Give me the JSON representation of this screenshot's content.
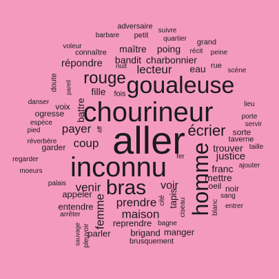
{
  "colors": {
    "background": "#f49ac1",
    "text": "#1a1a1a"
  },
  "words": [
    {
      "text": "aller",
      "orientation": "horizontal"
    },
    {
      "text": "chourineur",
      "orientation": "horizontal"
    },
    {
      "text": "inconnu",
      "orientation": "horizontal"
    },
    {
      "text": "goualeuse",
      "orientation": "horizontal"
    },
    {
      "text": "homme",
      "orientation": "vertical"
    },
    {
      "text": "bras",
      "orientation": "horizontal"
    },
    {
      "text": "rouge",
      "orientation": "horizontal"
    },
    {
      "text": "écrier",
      "orientation": "horizontal"
    },
    {
      "text": "payer",
      "orientation": "horizontal"
    },
    {
      "text": "coup",
      "orientation": "horizontal"
    },
    {
      "text": "venir",
      "orientation": "horizontal"
    },
    {
      "text": "maison",
      "orientation": "horizontal"
    },
    {
      "text": "prendre",
      "orientation": "horizontal"
    },
    {
      "text": "lecteur",
      "orientation": "horizontal"
    },
    {
      "text": "voir",
      "orientation": "horizontal"
    },
    {
      "text": "fille",
      "orientation": "horizontal"
    },
    {
      "text": "répondre",
      "orientation": "horizontal"
    },
    {
      "text": "bandit",
      "orientation": "horizontal"
    },
    {
      "text": "charbonnier",
      "orientation": "horizontal"
    },
    {
      "text": "maître",
      "orientation": "horizontal"
    },
    {
      "text": "poing",
      "orientation": "horizontal"
    },
    {
      "text": "eau",
      "orientation": "horizontal"
    },
    {
      "text": "justice",
      "orientation": "horizontal"
    },
    {
      "text": "trouver",
      "orientation": "horizontal"
    },
    {
      "text": "franc",
      "orientation": "horizontal"
    },
    {
      "text": "mettre",
      "orientation": "horizontal"
    },
    {
      "text": "femme",
      "orientation": "vertical"
    },
    {
      "text": "tapis",
      "orientation": "vertical"
    },
    {
      "text": "manger",
      "orientation": "horizontal"
    },
    {
      "text": "brigand",
      "orientation": "horizontal"
    },
    {
      "text": "parler",
      "orientation": "horizontal"
    },
    {
      "text": "reprendre",
      "orientation": "horizontal"
    },
    {
      "text": "appeler",
      "orientation": "horizontal"
    },
    {
      "text": "entendre",
      "orientation": "horizontal"
    },
    {
      "text": "battre",
      "orientation": "vertical"
    },
    {
      "text": "voix",
      "orientation": "horizontal"
    },
    {
      "text": "ogresse",
      "orientation": "horizontal"
    },
    {
      "text": "oeil",
      "orientation": "horizontal"
    },
    {
      "text": "noir",
      "orientation": "horizontal"
    },
    {
      "text": "sorte",
      "orientation": "horizontal"
    },
    {
      "text": "taverne",
      "orientation": "horizontal"
    },
    {
      "text": "garder",
      "orientation": "horizontal"
    },
    {
      "text": "rue",
      "orientation": "horizontal"
    },
    {
      "text": "quartier",
      "orientation": "horizontal"
    },
    {
      "text": "connaître",
      "orientation": "horizontal"
    },
    {
      "text": "petit",
      "orientation": "horizontal"
    },
    {
      "text": "adversaire",
      "orientation": "horizontal"
    },
    {
      "text": "barbare",
      "orientation": "horizontal"
    },
    {
      "text": "suivre",
      "orientation": "horizontal"
    },
    {
      "text": "grand",
      "orientation": "horizontal"
    },
    {
      "text": "voleur",
      "orientation": "horizontal"
    },
    {
      "text": "récit",
      "orientation": "horizontal"
    },
    {
      "text": "peine",
      "orientation": "horizontal"
    },
    {
      "text": "nuit",
      "orientation": "horizontal"
    },
    {
      "text": "scène",
      "orientation": "horizontal"
    },
    {
      "text": "doute",
      "orientation": "vertical"
    },
    {
      "text": "pareil",
      "orientation": "vertical"
    },
    {
      "text": "fois",
      "orientation": "horizontal"
    },
    {
      "text": "danser",
      "orientation": "horizontal"
    },
    {
      "text": "espèce",
      "orientation": "horizontal"
    },
    {
      "text": "pied",
      "orientation": "horizontal"
    },
    {
      "text": "aff",
      "orientation": "vertical"
    },
    {
      "text": "réverbère",
      "orientation": "horizontal"
    },
    {
      "text": "lieu",
      "orientation": "horizontal"
    },
    {
      "text": "porte",
      "orientation": "horizontal"
    },
    {
      "text": "servir",
      "orientation": "horizontal"
    },
    {
      "text": "taille",
      "orientation": "horizontal"
    },
    {
      "text": "ajouter",
      "orientation": "horizontal"
    },
    {
      "text": "regarder",
      "orientation": "horizontal"
    },
    {
      "text": "moeurs",
      "orientation": "horizontal"
    },
    {
      "text": "fer",
      "orientation": "horizontal"
    },
    {
      "text": "palais",
      "orientation": "horizontal"
    },
    {
      "text": "cité",
      "orientation": "vertical"
    },
    {
      "text": "ciseau",
      "orientation": "vertical"
    },
    {
      "text": "blanc",
      "orientation": "vertical"
    },
    {
      "text": "sang",
      "orientation": "horizontal"
    },
    {
      "text": "entrer",
      "orientation": "horizontal"
    },
    {
      "text": "arrêter",
      "orientation": "horizontal"
    },
    {
      "text": "sauvage",
      "orientation": "vertical"
    },
    {
      "text": "pleuvoir",
      "orientation": "vertical"
    },
    {
      "text": "bagne",
      "orientation": "horizontal"
    },
    {
      "text": "brusquement",
      "orientation": "horizontal"
    }
  ]
}
